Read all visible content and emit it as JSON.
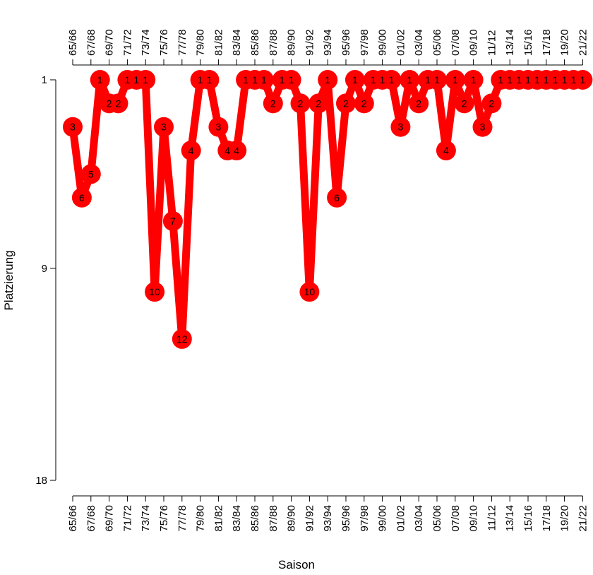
{
  "chart_data": {
    "type": "line",
    "title": "",
    "xlabel": "Saison",
    "ylabel": "Platzierung",
    "y_reversed": true,
    "ylim": [
      1,
      18
    ],
    "y_ticks": [
      1,
      9,
      18
    ],
    "x_tick_labels": [
      "65/66",
      "67/68",
      "69/70",
      "71/72",
      "73/74",
      "75/76",
      "77/78",
      "79/80",
      "81/82",
      "83/84",
      "85/86",
      "87/88",
      "89/90",
      "91/92",
      "93/94",
      "95/96",
      "97/98",
      "99/00",
      "01/02",
      "03/04",
      "05/06",
      "07/08",
      "09/10",
      "11/12",
      "13/14",
      "15/16",
      "17/18",
      "19/20",
      "21/22"
    ],
    "x_axes": [
      "top",
      "bottom"
    ],
    "line_color": "#ff0000",
    "label_color": "#000000",
    "series": [
      {
        "x": [
          "65/66",
          "66/67",
          "67/68",
          "68/69",
          "69/70",
          "70/71",
          "71/72",
          "72/73",
          "73/74",
          "74/75",
          "75/76",
          "76/77",
          "77/78",
          "78/79",
          "79/80",
          "80/81",
          "81/82",
          "82/83",
          "83/84",
          "84/85",
          "85/86",
          "86/87",
          "87/88",
          "88/89",
          "89/90",
          "90/91",
          "91/92",
          "92/93",
          "93/94",
          "94/95",
          "95/96",
          "96/97",
          "97/98",
          "98/99",
          "99/00",
          "00/01",
          "01/02",
          "02/03",
          "03/04",
          "04/05",
          "05/06",
          "06/07",
          "07/08",
          "08/09",
          "09/10",
          "10/11",
          "11/12",
          "12/13",
          "13/14",
          "14/15",
          "15/16",
          "16/17",
          "17/18",
          "18/19",
          "19/20",
          "20/21",
          "21/22"
        ],
        "values": [
          3,
          6,
          5,
          1,
          2,
          2,
          1,
          1,
          1,
          10,
          3,
          7,
          12,
          4,
          1,
          1,
          3,
          4,
          4,
          1,
          1,
          1,
          2,
          1,
          1,
          2,
          10,
          2,
          1,
          6,
          2,
          1,
          2,
          1,
          1,
          1,
          3,
          1,
          2,
          1,
          1,
          4,
          1,
          2,
          1,
          3,
          2,
          1,
          1,
          1,
          1,
          1,
          1,
          1,
          1,
          1,
          1
        ]
      }
    ]
  }
}
